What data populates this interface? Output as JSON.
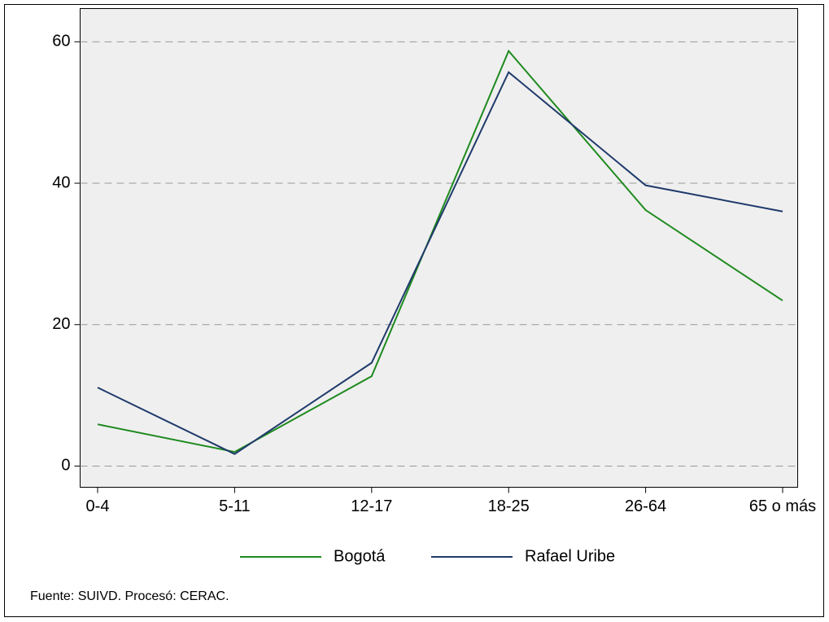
{
  "chart_data": {
    "type": "line",
    "categories": [
      "0-4",
      "5-11",
      "12-17",
      "18-25",
      "26-64",
      "65 o más"
    ],
    "series": [
      {
        "name": "Bogotá",
        "color": "#1e8a1e",
        "values": [
          5.9,
          2.0,
          12.7,
          58.7,
          36.2,
          23.4
        ]
      },
      {
        "name": "Rafael Uribe",
        "color": "#1f3a6b",
        "values": [
          11.1,
          1.7,
          14.6,
          55.7,
          39.7,
          36.0
        ]
      }
    ],
    "ylim": [
      -3,
      64.7
    ],
    "yticks": [
      0,
      20,
      40,
      60
    ],
    "grid": true,
    "legend": "bottom",
    "note": "Fuente: SUIVD. Procesó: CERAC."
  }
}
